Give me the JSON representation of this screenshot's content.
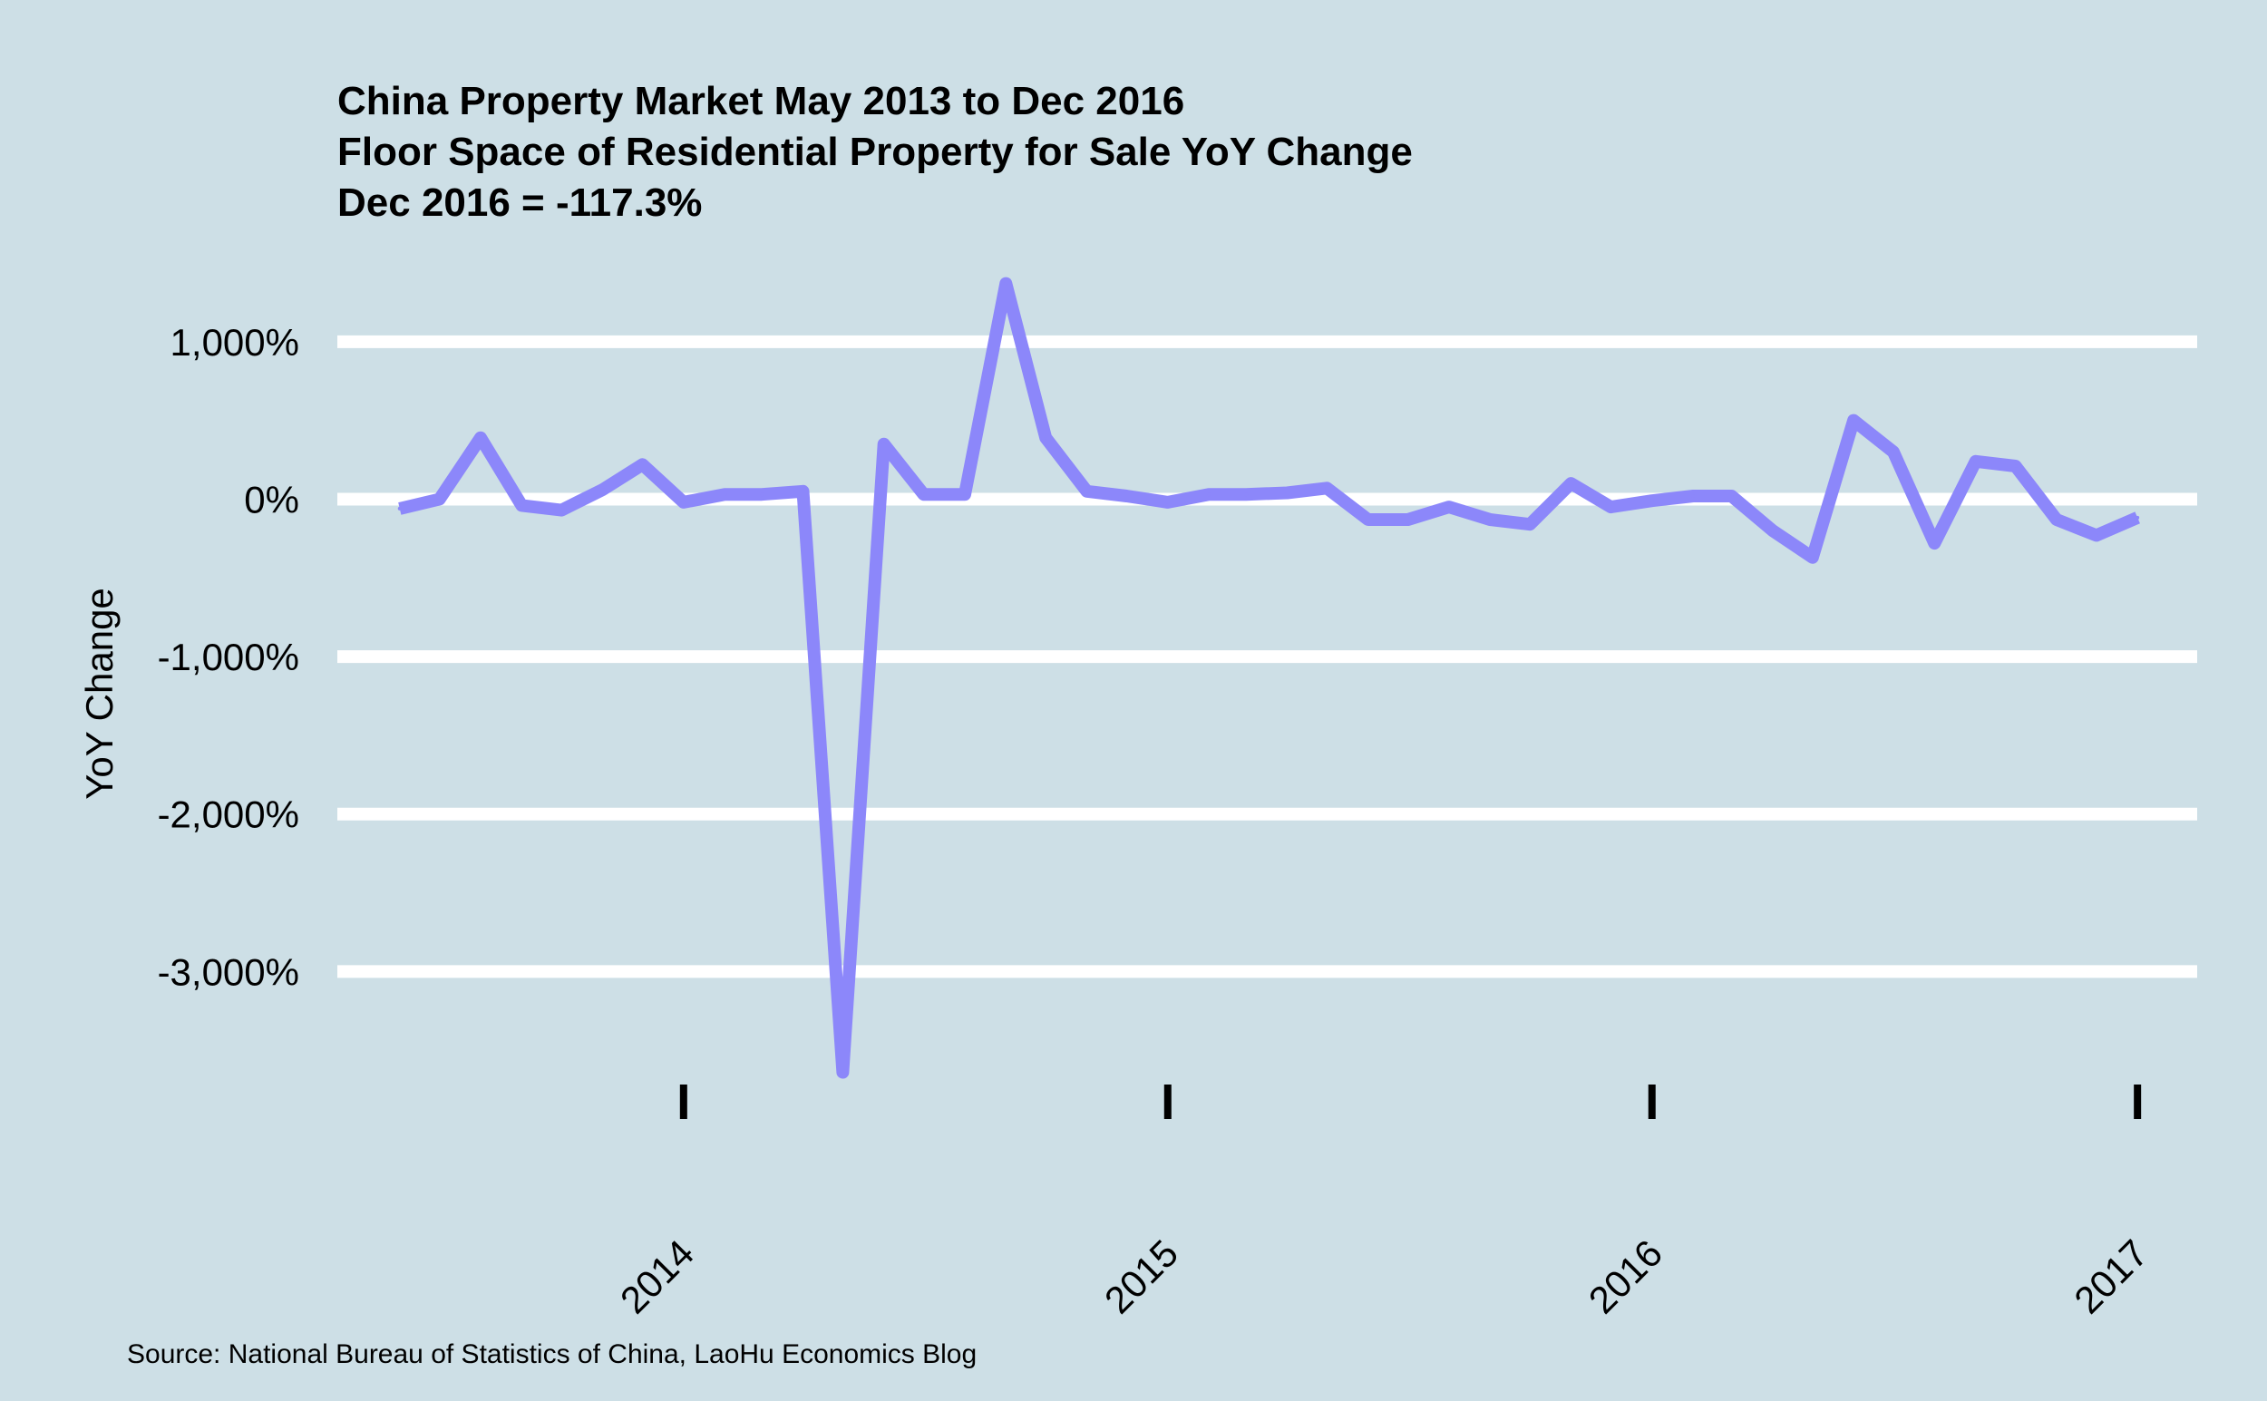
{
  "chart_data": {
    "type": "line",
    "title_lines": [
      "China Property Market May 2013 to Dec 2016",
      "Floor Space of Residential Property for Sale YoY Change",
      "Dec 2016 = -117.3%"
    ],
    "xlabel": "",
    "ylabel": "YoY Change",
    "caption": "Source: National Bureau of Statistics of China, LaoHu Economics Blog",
    "x_ticks": [
      "2014",
      "2015",
      "2016",
      "2017"
    ],
    "y_ticks": [
      {
        "value": 1000,
        "label": "1,000%"
      },
      {
        "value": 0,
        "label": "0%"
      },
      {
        "value": -1000,
        "label": "-1,000%"
      },
      {
        "value": -2000,
        "label": "-2,000%"
      },
      {
        "value": -3000,
        "label": "-3,000%"
      }
    ],
    "xlim": [
      "2013-04-15",
      "2017-02-15"
    ],
    "ylim": [
      -4000,
      1500
    ],
    "grid": "horizontal",
    "line_color": "#8c87fa",
    "series": [
      {
        "values": [
          {
            "date": "2013-06-01",
            "value": -60
          },
          {
            "date": "2013-07-01",
            "value": 0
          },
          {
            "date": "2013-08-01",
            "value": 390
          },
          {
            "date": "2013-09-01",
            "value": -40
          },
          {
            "date": "2013-10-01",
            "value": -70
          },
          {
            "date": "2013-11-01",
            "value": 60
          },
          {
            "date": "2013-12-01",
            "value": 220
          },
          {
            "date": "2014-01-01",
            "value": -20
          },
          {
            "date": "2014-02-01",
            "value": 30
          },
          {
            "date": "2014-03-01",
            "value": 30
          },
          {
            "date": "2014-04-01",
            "value": 50
          },
          {
            "date": "2014-05-01",
            "value": -3640
          },
          {
            "date": "2014-06-01",
            "value": 350
          },
          {
            "date": "2014-07-01",
            "value": 30
          },
          {
            "date": "2014-08-01",
            "value": 30
          },
          {
            "date": "2014-09-01",
            "value": 1370
          },
          {
            "date": "2014-10-01",
            "value": 390
          },
          {
            "date": "2014-11-01",
            "value": 50
          },
          {
            "date": "2014-12-01",
            "value": 20
          },
          {
            "date": "2015-01-01",
            "value": -20
          },
          {
            "date": "2015-02-01",
            "value": 30
          },
          {
            "date": "2015-03-01",
            "value": 30
          },
          {
            "date": "2015-04-01",
            "value": 40
          },
          {
            "date": "2015-05-01",
            "value": 70
          },
          {
            "date": "2015-06-01",
            "value": -130
          },
          {
            "date": "2015-07-01",
            "value": -130
          },
          {
            "date": "2015-08-01",
            "value": -50
          },
          {
            "date": "2015-09-01",
            "value": -130
          },
          {
            "date": "2015-10-01",
            "value": -160
          },
          {
            "date": "2015-11-01",
            "value": 100
          },
          {
            "date": "2015-12-01",
            "value": -50
          },
          {
            "date": "2016-01-01",
            "value": -10
          },
          {
            "date": "2016-02-01",
            "value": 20
          },
          {
            "date": "2016-03-01",
            "value": 20
          },
          {
            "date": "2016-04-01",
            "value": -200
          },
          {
            "date": "2016-05-01",
            "value": -370
          },
          {
            "date": "2016-06-01",
            "value": 500
          },
          {
            "date": "2016-07-01",
            "value": 300
          },
          {
            "date": "2016-08-01",
            "value": -280
          },
          {
            "date": "2016-09-01",
            "value": 240
          },
          {
            "date": "2016-10-01",
            "value": 210
          },
          {
            "date": "2016-11-01",
            "value": -130
          },
          {
            "date": "2016-12-01",
            "value": -230
          },
          {
            "date": "2017-01-01",
            "value": -117.3
          }
        ]
      }
    ]
  }
}
